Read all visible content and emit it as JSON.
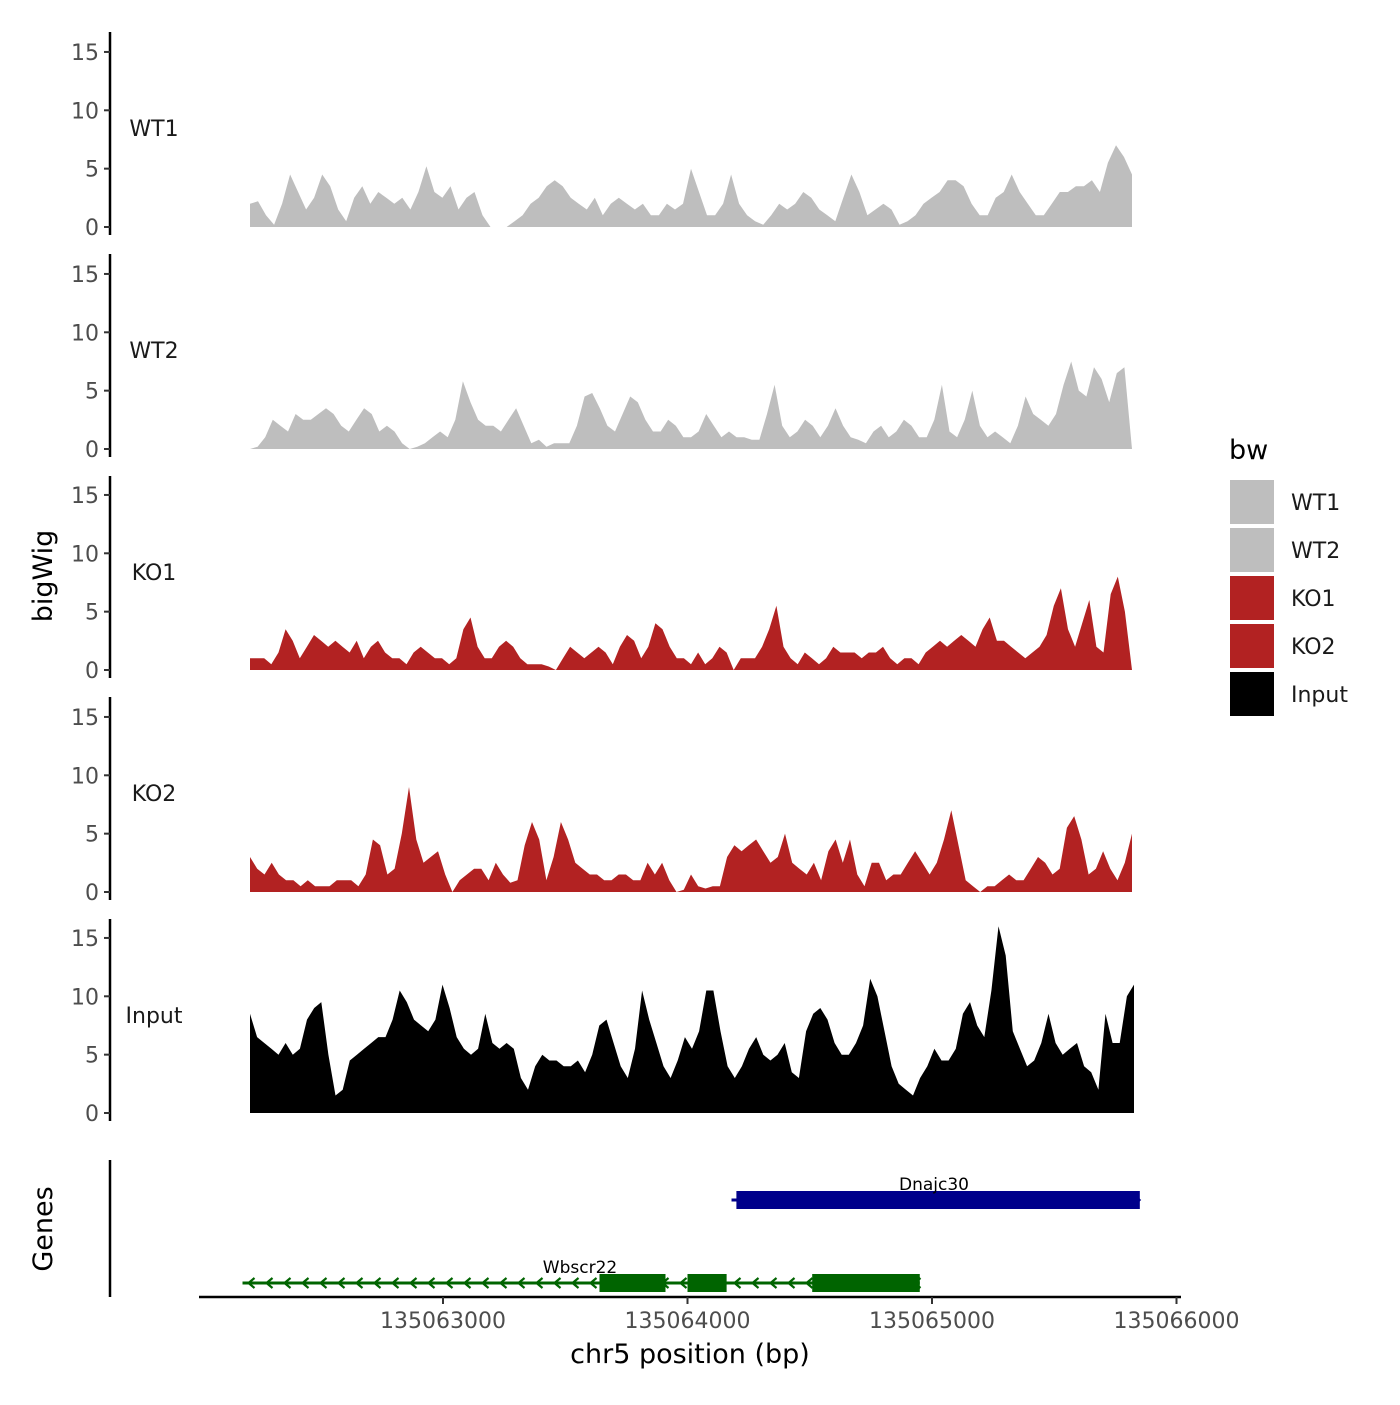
{
  "chart_data": {
    "type": "area",
    "ylabel": "bigWig",
    "xlabel": "chr5 position (bp)",
    "genes_label": "Genes",
    "ylim": [
      0,
      16
    ],
    "yticks": [
      0,
      5,
      10,
      15
    ],
    "xlim": [
      135062000,
      135066000
    ],
    "xticks": [
      135063000,
      135064000,
      135065000,
      135066000
    ],
    "legend": {
      "title": "bw",
      "items": [
        {
          "label": "WT1",
          "color": "#bebebe"
        },
        {
          "label": "WT2",
          "color": "#bebebe"
        },
        {
          "label": "KO1",
          "color": "#b22222"
        },
        {
          "label": "KO2",
          "color": "#b22222"
        },
        {
          "label": "Input",
          "color": "#000000"
        }
      ]
    },
    "x_start": 135062240,
    "step": 37,
    "series": [
      {
        "name": "WT1",
        "color": "#bebebe",
        "values": [
          2.0,
          2.2,
          1.0,
          0.2,
          2.0,
          4.5,
          3.0,
          1.5,
          2.5,
          4.5,
          3.5,
          1.5,
          0.5,
          2.5,
          3.5,
          2.0,
          3.0,
          2.5,
          2.0,
          2.5,
          1.5,
          3.0,
          5.2,
          3.0,
          2.5,
          3.5,
          1.5,
          2.5,
          3.0,
          1.0,
          0.0,
          0.0,
          0.0,
          0.5,
          1.0,
          2.0,
          2.5,
          3.5,
          4.0,
          3.5,
          2.5,
          2.0,
          1.5,
          2.5,
          1.0,
          2.0,
          2.5,
          2.0,
          1.5,
          2.0,
          1.0,
          1.0,
          2.0,
          1.5,
          2.0,
          5.0,
          3.0,
          1.0,
          1.0,
          2.0,
          4.5,
          2.0,
          1.0,
          0.5,
          0.2,
          1.0,
          2.0,
          1.5,
          2.0,
          3.0,
          2.5,
          1.5,
          1.0,
          0.5,
          2.5,
          4.5,
          3.0,
          1.0,
          1.5,
          2.0,
          1.5,
          0.2,
          0.5,
          1.0,
          2.0,
          2.5,
          3.0,
          4.0,
          4.0,
          3.5,
          2.0,
          1.0,
          1.0,
          2.5,
          3.0,
          4.5,
          3.0,
          2.0,
          1.0,
          1.0,
          2.0,
          3.0,
          3.0,
          3.5,
          3.5,
          4.0,
          3.0,
          5.5,
          7.0,
          6.0,
          4.5
        ]
      },
      {
        "name": "WT2",
        "color": "#bebebe",
        "values": [
          0.0,
          0.2,
          1.0,
          2.5,
          2.0,
          1.5,
          3.0,
          2.5,
          2.5,
          3.0,
          3.5,
          3.0,
          2.0,
          1.5,
          2.5,
          3.5,
          3.0,
          1.5,
          2.0,
          1.5,
          0.5,
          0.0,
          0.2,
          0.5,
          1.0,
          1.5,
          1.0,
          2.5,
          5.8,
          4.0,
          2.5,
          2.0,
          2.0,
          1.5,
          2.5,
          3.5,
          2.0,
          0.5,
          0.8,
          0.2,
          0.5,
          0.5,
          0.5,
          2.0,
          4.5,
          4.8,
          3.5,
          2.0,
          1.5,
          3.0,
          4.5,
          4.0,
          2.5,
          1.5,
          1.5,
          2.5,
          2.0,
          1.0,
          1.0,
          1.5,
          3.0,
          2.0,
          1.0,
          1.5,
          1.0,
          1.0,
          0.8,
          0.8,
          3.0,
          5.5,
          2.0,
          1.0,
          1.5,
          2.5,
          2.0,
          1.0,
          2.0,
          3.5,
          2.0,
          1.0,
          0.8,
          0.5,
          1.5,
          2.0,
          1.0,
          1.5,
          2.5,
          2.0,
          1.0,
          1.0,
          2.5,
          5.5,
          1.5,
          1.0,
          2.5,
          5.0,
          2.0,
          1.0,
          1.5,
          1.0,
          0.5,
          2.0,
          4.5,
          3.0,
          2.5,
          2.0,
          3.0,
          5.5,
          7.5,
          5.0,
          4.5,
          7.0,
          6.0,
          4.0,
          6.5,
          7.0,
          0.0
        ]
      },
      {
        "name": "KO1",
        "color": "#b22222",
        "values": [
          1.0,
          1.0,
          1.0,
          0.5,
          1.5,
          3.5,
          2.5,
          1.0,
          2.0,
          3.0,
          2.5,
          2.0,
          2.5,
          2.0,
          1.5,
          2.5,
          1.0,
          2.0,
          2.5,
          1.5,
          1.0,
          1.0,
          0.5,
          1.5,
          2.0,
          1.5,
          1.0,
          1.0,
          0.5,
          1.0,
          3.5,
          4.5,
          2.0,
          1.0,
          1.0,
          2.0,
          2.5,
          2.0,
          1.0,
          0.5,
          0.5,
          0.5,
          0.3,
          0.0,
          1.0,
          2.0,
          1.5,
          1.0,
          1.5,
          2.0,
          1.5,
          0.5,
          2.0,
          3.0,
          2.5,
          1.0,
          2.0,
          4.0,
          3.5,
          2.0,
          1.0,
          1.0,
          0.5,
          1.5,
          0.5,
          1.0,
          2.0,
          1.5,
          0.0,
          1.0,
          1.0,
          1.0,
          2.0,
          3.5,
          5.5,
          2.0,
          1.0,
          0.5,
          1.5,
          1.0,
          0.5,
          1.0,
          2.0,
          1.5,
          1.5,
          1.5,
          1.0,
          1.5,
          1.5,
          2.0,
          1.0,
          0.5,
          1.0,
          1.0,
          0.5,
          1.5,
          2.0,
          2.5,
          2.0,
          2.5,
          3.0,
          2.5,
          2.0,
          3.5,
          4.5,
          2.5,
          2.5,
          2.0,
          1.5,
          1.0,
          1.5,
          2.0,
          3.0,
          5.5,
          7.0,
          3.5,
          2.0,
          4.0,
          6.0,
          2.0,
          1.5,
          6.5,
          8.0,
          5.0,
          0.0
        ]
      },
      {
        "name": "KO2",
        "color": "#b22222",
        "values": [
          3.0,
          2.0,
          1.5,
          2.5,
          1.5,
          1.0,
          1.0,
          0.5,
          1.0,
          0.5,
          0.5,
          0.5,
          1.0,
          1.0,
          1.0,
          0.5,
          1.5,
          4.5,
          4.0,
          1.5,
          2.0,
          5.0,
          9.0,
          4.5,
          2.5,
          3.0,
          3.5,
          1.5,
          0.0,
          1.0,
          1.5,
          2.0,
          2.0,
          1.0,
          2.5,
          1.5,
          0.8,
          1.0,
          4.0,
          6.0,
          4.5,
          1.0,
          3.0,
          6.0,
          4.5,
          2.5,
          2.0,
          1.5,
          1.5,
          1.0,
          1.0,
          1.5,
          1.5,
          1.0,
          1.0,
          2.5,
          1.5,
          2.5,
          1.0,
          0.0,
          0.2,
          1.5,
          0.5,
          0.3,
          0.5,
          0.5,
          3.0,
          4.0,
          3.5,
          4.0,
          4.5,
          3.5,
          2.5,
          3.0,
          5.0,
          2.5,
          2.0,
          1.5,
          2.5,
          1.0,
          3.5,
          4.5,
          2.5,
          4.5,
          1.5,
          0.5,
          2.5,
          2.5,
          1.0,
          1.5,
          1.5,
          2.5,
          3.5,
          2.5,
          1.5,
          2.5,
          4.5,
          7.0,
          4.0,
          1.0,
          0.5,
          0.0,
          0.5,
          0.5,
          1.0,
          1.5,
          1.0,
          1.0,
          2.0,
          3.0,
          2.5,
          1.5,
          2.0,
          5.5,
          6.5,
          4.5,
          1.5,
          2.0,
          3.5,
          2.0,
          1.0,
          2.5,
          5.0
        ]
      },
      {
        "name": "Input",
        "color": "#000000",
        "values": [
          8.5,
          6.5,
          6.0,
          5.5,
          5.0,
          6.0,
          5.0,
          5.5,
          8.0,
          9.0,
          9.5,
          5.0,
          1.5,
          2.0,
          4.5,
          5.0,
          5.5,
          6.0,
          6.5,
          6.5,
          8.0,
          10.5,
          9.5,
          8.0,
          7.5,
          7.0,
          8.0,
          11.0,
          9.0,
          6.5,
          5.5,
          5.0,
          5.5,
          8.5,
          6.0,
          5.5,
          6.0,
          5.5,
          3.0,
          2.0,
          4.0,
          5.0,
          4.5,
          4.5,
          4.0,
          4.0,
          4.5,
          3.5,
          5.0,
          7.5,
          8.0,
          6.0,
          4.0,
          3.0,
          5.5,
          10.5,
          8.0,
          6.0,
          4.0,
          3.0,
          4.5,
          6.5,
          5.5,
          7.0,
          10.5,
          10.5,
          7.0,
          4.0,
          3.0,
          4.0,
          5.5,
          6.5,
          5.0,
          4.5,
          5.0,
          6.0,
          3.5,
          3.0,
          7.0,
          8.5,
          9.0,
          8.0,
          6.0,
          5.0,
          5.0,
          6.0,
          7.5,
          11.5,
          10.0,
          7.0,
          4.0,
          2.5,
          2.0,
          1.5,
          3.0,
          4.0,
          5.5,
          4.5,
          4.5,
          5.5,
          8.5,
          9.5,
          7.5,
          6.5,
          10.5,
          16.0,
          13.5,
          7.0,
          5.5,
          4.0,
          4.5,
          6.0,
          8.5,
          6.0,
          5.0,
          5.5,
          6.0,
          4.0,
          3.5,
          2.0,
          8.5,
          6.0,
          6.0,
          10.0,
          11.0
        ]
      }
    ],
    "genes": [
      {
        "name": "Dnajc30",
        "color": "#00008b",
        "start": 135064180,
        "end": 135065850,
        "strand": "+",
        "exons": [
          [
            135064200,
            135065850
          ]
        ]
      },
      {
        "name": "Wbscr22",
        "color": "#006400",
        "start": 135062180,
        "end": 135064950,
        "strand": "-",
        "exons": [
          [
            135063640,
            135063910
          ],
          [
            135064000,
            135064160
          ],
          [
            135064510,
            135064950
          ]
        ]
      }
    ]
  }
}
